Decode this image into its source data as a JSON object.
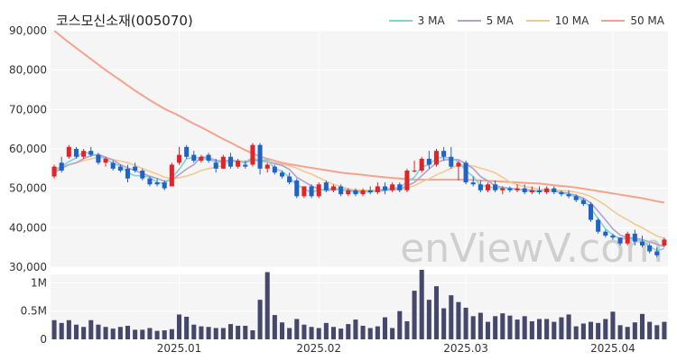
{
  "chart_data": {
    "title": "코스모신소재(005070)",
    "type": "candlestick",
    "watermark": "enViewV.com",
    "legend": [
      {
        "name": "3 MA",
        "color": "#7fd3d8"
      },
      {
        "name": "5 MA",
        "color": "#b3a0cf"
      },
      {
        "name": "10 MA",
        "color": "#f2c98f"
      },
      {
        "name": "50 MA",
        "color": "#f4a38e"
      }
    ],
    "colors": {
      "up": "#e0242a",
      "down": "#1f63c6",
      "volume": "#45476b"
    },
    "price_axis": {
      "min": 30000,
      "max": 90000,
      "ticks": [
        "90,000",
        "80,000",
        "70,000",
        "60,000",
        "50,000",
        "40,000",
        "30,000"
      ],
      "tick_values": [
        90000,
        80000,
        70000,
        60000,
        50000,
        40000,
        30000
      ]
    },
    "volume_axis": {
      "min": 0,
      "max": 1150000,
      "ticks": [
        "1M",
        "0.5M",
        "0"
      ],
      "tick_values": [
        1000000,
        500000,
        0
      ]
    },
    "x_ticks": [
      {
        "label": "2025.01",
        "index": 17
      },
      {
        "label": "2025.02",
        "index": 36
      },
      {
        "label": "2025.03",
        "index": 56
      },
      {
        "label": "2025.04",
        "index": 76
      }
    ],
    "candles": [
      [
        53000,
        56000,
        52500,
        55500
      ],
      [
        56500,
        58000,
        54000,
        54500
      ],
      [
        58000,
        61000,
        57500,
        60500
      ],
      [
        60000,
        60500,
        57500,
        58000
      ],
      [
        58000,
        60000,
        57500,
        59500
      ],
      [
        59500,
        60500,
        58000,
        58500
      ],
      [
        58500,
        59000,
        56000,
        56500
      ],
      [
        56500,
        58000,
        55500,
        57500
      ],
      [
        56500,
        57000,
        54500,
        55000
      ],
      [
        55500,
        56000,
        54000,
        54500
      ],
      [
        55000,
        56000,
        51500,
        52500
      ],
      [
        55500,
        56500,
        54000,
        54500
      ],
      [
        54500,
        55000,
        52000,
        52500
      ],
      [
        52500,
        53000,
        50500,
        51000
      ],
      [
        51500,
        52500,
        50500,
        51000
      ],
      [
        51500,
        52000,
        49500,
        50000
      ],
      [
        50500,
        56500,
        50500,
        56000
      ],
      [
        56500,
        60500,
        56000,
        58500
      ],
      [
        60500,
        61000,
        57500,
        58000
      ],
      [
        58500,
        59500,
        56500,
        57000
      ],
      [
        57000,
        58500,
        56500,
        58000
      ],
      [
        58500,
        59000,
        56500,
        57000
      ],
      [
        56500,
        57500,
        54000,
        55000
      ],
      [
        55000,
        58500,
        55000,
        58000
      ],
      [
        58000,
        59000,
        55000,
        55500
      ],
      [
        55500,
        57500,
        55000,
        57000
      ],
      [
        56000,
        57000,
        55000,
        55500
      ],
      [
        56000,
        61500,
        55500,
        61000
      ],
      [
        61000,
        61500,
        53500,
        55000
      ],
      [
        55000,
        56500,
        54000,
        56000
      ],
      [
        55500,
        56000,
        53500,
        54000
      ],
      [
        54000,
        54500,
        52500,
        53000
      ],
      [
        53000,
        54000,
        51000,
        51500
      ],
      [
        52000,
        52500,
        47500,
        48000
      ],
      [
        48000,
        50500,
        47500,
        50500
      ],
      [
        50500,
        51000,
        47500,
        48000
      ],
      [
        48000,
        51500,
        47500,
        51000
      ],
      [
        51500,
        52000,
        49000,
        49500
      ],
      [
        49500,
        51000,
        49000,
        50500
      ],
      [
        50500,
        51000,
        48000,
        48500
      ],
      [
        48500,
        50000,
        48000,
        49500
      ],
      [
        49500,
        50000,
        48000,
        48500
      ],
      [
        48500,
        50000,
        48000,
        49500
      ],
      [
        49500,
        50500,
        48500,
        49000
      ],
      [
        49000,
        51500,
        48500,
        50500
      ],
      [
        50500,
        51500,
        48500,
        49500
      ],
      [
        49500,
        51500,
        49000,
        51000
      ],
      [
        51000,
        51500,
        49000,
        49500
      ],
      [
        49500,
        55000,
        49000,
        54500
      ],
      [
        54500,
        57000,
        54000,
        54500
      ],
      [
        54500,
        58000,
        54000,
        57500
      ],
      [
        57500,
        59500,
        55000,
        56000
      ],
      [
        56000,
        60000,
        55500,
        59500
      ],
      [
        59500,
        60500,
        57000,
        58000
      ],
      [
        58000,
        60500,
        55000,
        55500
      ],
      [
        55500,
        57000,
        52000,
        56500
      ],
      [
        56500,
        57000,
        51000,
        51500
      ],
      [
        51500,
        53000,
        50500,
        51000
      ],
      [
        51000,
        52000,
        49000,
        49500
      ],
      [
        49500,
        51500,
        49000,
        51000
      ],
      [
        51000,
        52000,
        49000,
        49500
      ],
      [
        49500,
        50500,
        48500,
        50000
      ],
      [
        50000,
        50500,
        49000,
        49500
      ],
      [
        49500,
        51000,
        49000,
        50000
      ],
      [
        50000,
        51000,
        48500,
        49000
      ],
      [
        49000,
        50500,
        48500,
        49500
      ],
      [
        49500,
        50500,
        48500,
        49000
      ],
      [
        49000,
        50500,
        48500,
        50000
      ],
      [
        50000,
        50500,
        48500,
        49000
      ],
      [
        49000,
        49500,
        48000,
        48500
      ],
      [
        48500,
        49500,
        47500,
        48000
      ],
      [
        48000,
        48500,
        46500,
        47000
      ],
      [
        47000,
        47500,
        45500,
        46000
      ],
      [
        46000,
        46500,
        41500,
        42000
      ],
      [
        42000,
        42500,
        38500,
        39000
      ],
      [
        39000,
        39500,
        37500,
        38000
      ],
      [
        38000,
        38500,
        37000,
        37500
      ],
      [
        37500,
        37500,
        35500,
        36000
      ],
      [
        36000,
        39000,
        35500,
        38500
      ],
      [
        38500,
        39500,
        35500,
        36500
      ],
      [
        36500,
        38000,
        35000,
        35500
      ],
      [
        35500,
        36000,
        33500,
        34000
      ],
      [
        34000,
        35000,
        32500,
        33000
      ],
      [
        35500,
        37500,
        35000,
        37000
      ]
    ],
    "ma_3": [
      54500,
      55500,
      56800,
      57700,
      59300,
      58700,
      58200,
      57500,
      56300,
      55700,
      54000,
      53200,
      53200,
      52800,
      51500,
      51200,
      52700,
      54800,
      57500,
      57800,
      57700,
      57300,
      56700,
      56700,
      56800,
      56800,
      56700,
      57800,
      57000,
      57300,
      55000,
      54300,
      52800,
      50800,
      50000,
      48800,
      49800,
      49500,
      50300,
      49500,
      49500,
      48800,
      49200,
      49000,
      49700,
      49700,
      50300,
      50000,
      51700,
      52800,
      55500,
      56000,
      57700,
      57800,
      57700,
      56700,
      54500,
      53000,
      50700,
      50500,
      50000,
      50100,
      49800,
      49800,
      49500,
      49200,
      49200,
      49500,
      49300,
      48800,
      48500,
      47800,
      47000,
      45000,
      42300,
      39700,
      38200,
      37200,
      37300,
      37000,
      36800,
      35300,
      34200,
      34700
    ],
    "ma_5": [
      54000,
      55000,
      56000,
      56500,
      57500,
      58300,
      58600,
      57900,
      57200,
      56000,
      55200,
      54500,
      53800,
      53100,
      52500,
      51800,
      52100,
      53500,
      54900,
      56000,
      58000,
      57800,
      57100,
      56900,
      57200,
      56900,
      56400,
      57300,
      57000,
      56900,
      56300,
      55800,
      54800,
      52800,
      51700,
      50600,
      49800,
      49400,
      49700,
      49700,
      49600,
      49200,
      49300,
      49100,
      49400,
      49400,
      49800,
      49800,
      50600,
      51500,
      53200,
      54900,
      56500,
      57200,
      57300,
      57300,
      56200,
      55000,
      53000,
      51900,
      50600,
      50300,
      50000,
      49800,
      49700,
      49500,
      49300,
      49400,
      49300,
      49000,
      48700,
      48200,
      47500,
      46300,
      44200,
      42000,
      39700,
      38100,
      37500,
      37300,
      37000,
      36400,
      35800,
      35200
    ],
    "ma_10": [
      55000,
      55500,
      56000,
      56500,
      57000,
      57500,
      57800,
      57700,
      57300,
      56900,
      56500,
      55800,
      55000,
      54300,
      53600,
      52800,
      52500,
      52700,
      53100,
      53700,
      54500,
      55000,
      55300,
      55900,
      56700,
      57000,
      56900,
      57100,
      56800,
      56600,
      56400,
      56100,
      55700,
      55100,
      54300,
      53600,
      52700,
      51800,
      51000,
      50400,
      49900,
      49600,
      49500,
      49500,
      49500,
      49500,
      49600,
      49600,
      50100,
      50700,
      51600,
      52400,
      53400,
      54200,
      55100,
      55900,
      55900,
      55700,
      55100,
      54600,
      53900,
      52800,
      51600,
      50900,
      50500,
      50100,
      49800,
      49700,
      49600,
      49400,
      49300,
      49000,
      48600,
      47900,
      46900,
      45700,
      44300,
      43000,
      42000,
      40900,
      40000,
      38900,
      37900,
      37300
    ],
    "ma_50": [
      90000,
      88500,
      87000,
      85600,
      84200,
      82800,
      81400,
      80000,
      78700,
      77400,
      76100,
      74800,
      73600,
      72400,
      71300,
      70200,
      69300,
      68400,
      67400,
      66400,
      65500,
      64500,
      63500,
      62500,
      61600,
      60600,
      59700,
      58800,
      58100,
      57500,
      57000,
      56500,
      56100,
      55800,
      55500,
      55200,
      54900,
      54600,
      54300,
      54000,
      53800,
      53600,
      53400,
      53200,
      53000,
      52800,
      52600,
      52500,
      52300,
      52200,
      52200,
      52200,
      52200,
      52200,
      52200,
      52200,
      52200,
      52100,
      52000,
      51900,
      51800,
      51700,
      51600,
      51500,
      51400,
      51300,
      51200,
      51000,
      50800,
      50600,
      50400,
      50200,
      49900,
      49600,
      49300,
      49000,
      48700,
      48400,
      48100,
      47800,
      47500,
      47100,
      46700,
      46400
    ],
    "volume": [
      340000,
      290000,
      340000,
      260000,
      220000,
      340000,
      260000,
      220000,
      190000,
      220000,
      240000,
      170000,
      170000,
      200000,
      150000,
      160000,
      180000,
      440000,
      400000,
      260000,
      230000,
      220000,
      200000,
      200000,
      270000,
      240000,
      240000,
      160000,
      700000,
      1190000,
      430000,
      300000,
      200000,
      360000,
      260000,
      220000,
      200000,
      290000,
      220000,
      190000,
      270000,
      350000,
      240000,
      200000,
      230000,
      390000,
      200000,
      500000,
      320000,
      860000,
      1230000,
      700000,
      940000,
      550000,
      780000,
      660000,
      560000,
      410000,
      470000,
      310000,
      410000,
      460000,
      420000,
      350000,
      410000,
      320000,
      360000,
      360000,
      310000,
      390000,
      440000,
      230000,
      280000,
      310000,
      290000,
      360000,
      490000,
      250000,
      220000,
      300000,
      450000,
      310000,
      250000,
      310000
    ]
  }
}
